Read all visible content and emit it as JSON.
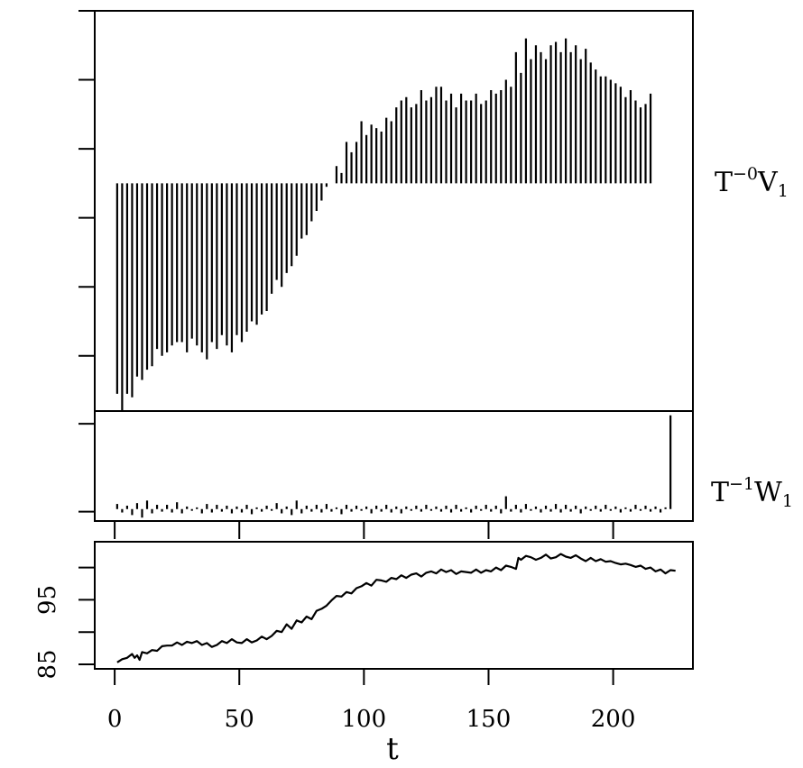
{
  "chart_data": {
    "type": "line",
    "xlabel": "t",
    "x_ticks": [
      "0",
      "50",
      "100",
      "150",
      "200"
    ],
    "xlim": [
      -8,
      232
    ],
    "panels": [
      {
        "id": "v1",
        "type": "bar",
        "label": {
          "base": "T",
          "sup": "−0",
          "rest": "V",
          "sub": "1"
        },
        "baseline": 0,
        "ylim": [
          -3.3,
          2.5
        ],
        "y_tick_values": [
          -2.5,
          -1.5,
          -0.5,
          0.5,
          1.5,
          2.5
        ],
        "y_tick_labels_shown": false,
        "values": [
          -3.05,
          -3.3,
          -3.05,
          -3.1,
          -2.8,
          -2.85,
          -2.7,
          -2.65,
          -2.4,
          -2.5,
          -2.45,
          -2.35,
          -2.3,
          -2.3,
          -2.45,
          -2.25,
          -2.35,
          -2.45,
          -2.55,
          -2.3,
          -2.4,
          -2.2,
          -2.35,
          -2.45,
          -2.2,
          -2.3,
          -2.15,
          -2.0,
          -2.05,
          -1.9,
          -1.85,
          -1.6,
          -1.4,
          -1.5,
          -1.3,
          -1.2,
          -1.05,
          -0.8,
          -0.75,
          -0.55,
          -0.4,
          -0.25,
          -0.05,
          0.0,
          0.25,
          0.15,
          0.6,
          0.45,
          0.6,
          0.9,
          0.7,
          0.85,
          0.8,
          0.75,
          0.95,
          0.9,
          1.1,
          1.2,
          1.25,
          1.1,
          1.15,
          1.35,
          1.2,
          1.25,
          1.4,
          1.4,
          1.2,
          1.3,
          1.1,
          1.3,
          1.2,
          1.2,
          1.3,
          1.15,
          1.2,
          1.35,
          1.3,
          1.35,
          1.5,
          1.4,
          1.9,
          1.6,
          2.1,
          1.8,
          2.0,
          1.9,
          1.8,
          2.0,
          2.05,
          1.9,
          2.1,
          1.9,
          2.0,
          1.8,
          1.95,
          1.75,
          1.65,
          1.55,
          1.55,
          1.5,
          1.45,
          1.4,
          1.25,
          1.35,
          1.2,
          1.1,
          1.15,
          1.3
        ],
        "tail": {
          "index": 112,
          "value": 1.3
        }
      },
      {
        "id": "w1",
        "type": "bar",
        "label": {
          "base": "T",
          "sup": "−1",
          "rest": "W",
          "sub": "1"
        },
        "baseline": 0,
        "ylim": [
          -0.14,
          1.15
        ],
        "y_tick_values": [
          -0.03,
          1.0
        ],
        "y_tick_labels_shown": false,
        "values": [
          0.06,
          -0.04,
          0.04,
          -0.07,
          0.07,
          -0.1,
          0.1,
          -0.05,
          0.05,
          -0.03,
          0.05,
          -0.04,
          0.08,
          -0.05,
          0.03,
          -0.02,
          0.02,
          -0.05,
          0.06,
          -0.04,
          0.05,
          -0.03,
          0.04,
          -0.05,
          0.03,
          -0.04,
          0.05,
          -0.06,
          0.02,
          -0.03,
          0.04,
          -0.02,
          0.07,
          -0.05,
          0.03,
          -0.07,
          0.1,
          -0.05,
          0.04,
          -0.03,
          0.05,
          -0.04,
          0.06,
          -0.03,
          0.02,
          -0.06,
          0.05,
          -0.03,
          0.04,
          -0.02,
          0.03,
          -0.05,
          0.04,
          -0.03,
          0.05,
          -0.04,
          0.03,
          -0.05,
          0.03,
          -0.02,
          0.04,
          -0.03,
          0.05,
          -0.02,
          0.03,
          -0.03,
          0.04,
          -0.04,
          0.05,
          -0.03,
          0.02,
          -0.04,
          0.04,
          -0.02,
          0.05,
          -0.03,
          0.04,
          -0.05,
          0.15,
          -0.03,
          0.05,
          -0.04,
          0.06,
          -0.02,
          0.03,
          -0.04,
          0.04,
          -0.03,
          0.06,
          -0.04,
          0.05,
          -0.03,
          0.04,
          -0.05,
          0.03,
          -0.02,
          0.04,
          -0.03,
          0.05,
          -0.02,
          0.03,
          -0.04,
          0.02,
          -0.03,
          0.05,
          -0.02,
          0.04,
          -0.03,
          0.03,
          -0.04,
          0.02,
          1.1
        ]
      },
      {
        "id": "series",
        "type": "line",
        "label": null,
        "ylim": [
          84.3,
          104.0
        ],
        "y_tick_values": [
          85,
          90,
          95,
          100
        ],
        "y_tick_labels": [
          "85",
          "",
          "95",
          ""
        ],
        "x": [
          1,
          3,
          5,
          7,
          8,
          9,
          10,
          11,
          13,
          15,
          17,
          19,
          21,
          23,
          25,
          27,
          29,
          31,
          33,
          35,
          37,
          39,
          41,
          43,
          45,
          47,
          49,
          51,
          53,
          55,
          57,
          59,
          61,
          63,
          65,
          67,
          69,
          71,
          73,
          75,
          77,
          79,
          81,
          83,
          85,
          87,
          89,
          91,
          93,
          95,
          97,
          99,
          101,
          103,
          105,
          107,
          109,
          111,
          113,
          115,
          117,
          119,
          121,
          123,
          125,
          127,
          129,
          131,
          133,
          135,
          137,
          139,
          141,
          143,
          145,
          147,
          149,
          151,
          153,
          155,
          157,
          159,
          161,
          162,
          163,
          165,
          167,
          169,
          171,
          173,
          175,
          177,
          179,
          181,
          183,
          185,
          187,
          189,
          191,
          193,
          195,
          197,
          199,
          201,
          203,
          205,
          207,
          209,
          211,
          213,
          215,
          217,
          219,
          221,
          223,
          225
        ],
        "y": [
          85.3,
          85.8,
          86.0,
          86.6,
          86.0,
          86.4,
          85.7,
          86.9,
          86.7,
          87.2,
          87.1,
          87.8,
          87.9,
          87.9,
          88.4,
          88.0,
          88.5,
          88.3,
          88.6,
          88.0,
          88.3,
          87.7,
          88.0,
          88.6,
          88.3,
          88.9,
          88.4,
          88.3,
          88.9,
          88.4,
          88.7,
          89.3,
          88.9,
          89.4,
          90.2,
          90.0,
          91.2,
          90.5,
          91.8,
          91.5,
          92.4,
          92.0,
          93.3,
          93.6,
          94.1,
          94.9,
          95.6,
          95.5,
          96.2,
          96.0,
          96.8,
          97.1,
          97.6,
          97.2,
          98.1,
          98.0,
          97.8,
          98.4,
          98.2,
          98.8,
          98.4,
          98.9,
          99.1,
          98.6,
          99.2,
          99.4,
          99.1,
          99.7,
          99.3,
          99.6,
          99.0,
          99.4,
          99.3,
          99.2,
          99.7,
          99.2,
          99.6,
          99.4,
          100.0,
          99.6,
          100.3,
          100.1,
          99.8,
          101.5,
          101.2,
          101.8,
          101.6,
          101.2,
          101.5,
          102.0,
          101.4,
          101.6,
          102.1,
          101.7,
          101.5,
          101.9,
          101.4,
          101.0,
          101.5,
          101.0,
          101.3,
          100.9,
          101.0,
          100.7,
          100.5,
          100.6,
          100.4,
          100.1,
          100.3,
          99.8,
          100.0,
          99.4,
          99.7,
          99.1,
          99.6,
          99.5
        ]
      }
    ]
  }
}
